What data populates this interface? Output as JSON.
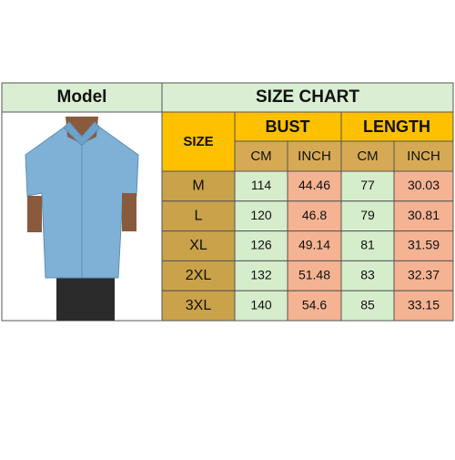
{
  "header": {
    "model": "Model",
    "title": "SIZE CHART"
  },
  "table": {
    "size_header": "SIZE",
    "groups": [
      "BUST",
      "LENGTH"
    ],
    "units": [
      "CM",
      "INCH",
      "CM",
      "INCH"
    ],
    "rows": [
      [
        "M",
        114,
        44.46,
        77,
        30.03
      ],
      [
        "L",
        120,
        46.8,
        79,
        30.81
      ],
      [
        "XL",
        126,
        49.14,
        81,
        31.59
      ],
      [
        "2XL",
        132,
        51.48,
        83,
        32.37
      ],
      [
        "3XL",
        140,
        54.6,
        85,
        33.15
      ]
    ]
  }
}
